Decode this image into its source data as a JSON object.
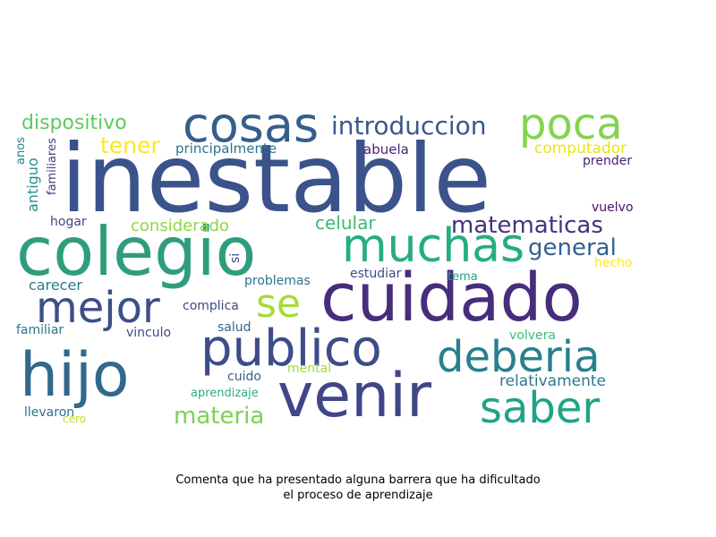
{
  "caption": {
    "line1": "Comenta que ha presentado alguna barrera que ha dificultado",
    "line2": "el proceso de aprendizaje"
  },
  "words": [
    {
      "text": "inestable",
      "color": "#3b528b"
    },
    {
      "text": "colegio",
      "color": "#2e9d7e"
    },
    {
      "text": "cuidado",
      "color": "#472d7b"
    },
    {
      "text": "venir",
      "color": "#404688"
    },
    {
      "text": "hijo",
      "color": "#31688e"
    },
    {
      "text": "publico",
      "color": "#3e4c8a"
    },
    {
      "text": "cosas",
      "color": "#355e8d"
    },
    {
      "text": "muchas",
      "color": "#26ad81"
    },
    {
      "text": "poca",
      "color": "#84d44b"
    },
    {
      "text": "saber",
      "color": "#20a486"
    },
    {
      "text": "deberia",
      "color": "#27808e"
    },
    {
      "text": "mejor",
      "color": "#3c4f8a"
    },
    {
      "text": "se",
      "color": "#a5db36"
    },
    {
      "text": "introduccion",
      "color": "#38598c"
    },
    {
      "text": "matematicas",
      "color": "#46327e"
    },
    {
      "text": "general",
      "color": "#34618d"
    },
    {
      "text": "materia",
      "color": "#7ad151"
    },
    {
      "text": "dispositivo",
      "color": "#5ec962"
    },
    {
      "text": "tener",
      "color": "#fde725"
    },
    {
      "text": "celular",
      "color": "#3bbb75"
    },
    {
      "text": "considerado",
      "color": "#8fd744"
    },
    {
      "text": "relativamente",
      "color": "#2a788e"
    },
    {
      "text": "principalmente",
      "color": "#2c728e"
    },
    {
      "text": "computador",
      "color": "#e8e419"
    },
    {
      "text": "carecer",
      "color": "#297b8e"
    },
    {
      "text": "abuela",
      "color": "#482576"
    },
    {
      "text": "prender",
      "color": "#481f70"
    },
    {
      "text": "antiguo",
      "color": "#21918c"
    },
    {
      "text": "familiares",
      "color": "#433e85"
    },
    {
      "text": "anos",
      "color": "#277f8e"
    },
    {
      "text": "vuelvo",
      "color": "#471063"
    },
    {
      "text": "hogar",
      "color": "#3f4788"
    },
    {
      "text": "hecho",
      "color": "#fde725"
    },
    {
      "text": "problemas",
      "color": "#2c738e"
    },
    {
      "text": "estudiar",
      "color": "#3d4e8a"
    },
    {
      "text": "tema",
      "color": "#1fa188"
    },
    {
      "text": "si",
      "color": "#3e4989"
    },
    {
      "text": "complica",
      "color": "#3e4a89"
    },
    {
      "text": "salud",
      "color": "#32658e"
    },
    {
      "text": "familiar",
      "color": "#2a768e"
    },
    {
      "text": "vinculo",
      "color": "#3e4a89"
    },
    {
      "text": "volvera",
      "color": "#3dbc74"
    },
    {
      "text": "cuido",
      "color": "#355f8d"
    },
    {
      "text": "mental",
      "color": "#a2da37"
    },
    {
      "text": "aprendizaje",
      "color": "#2ab07f"
    },
    {
      "text": "llevaron",
      "color": "#2c718e"
    },
    {
      "text": "cero",
      "color": "#c2df23"
    }
  ]
}
